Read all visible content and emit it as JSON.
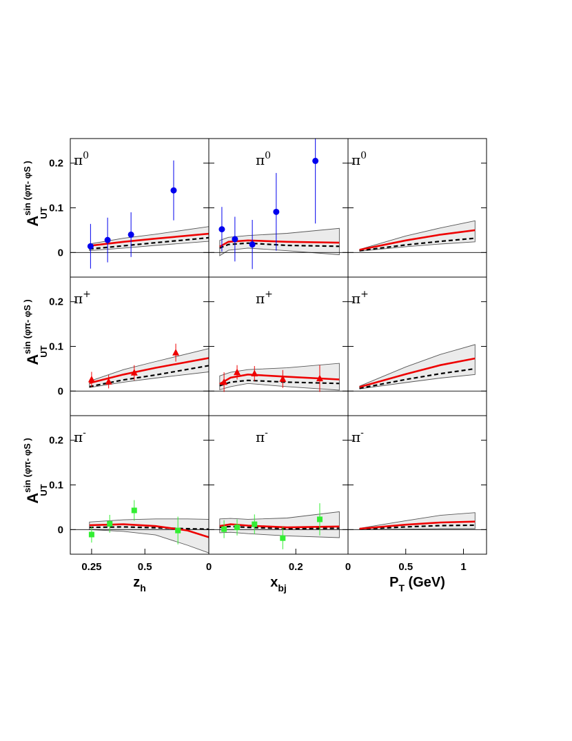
{
  "figure": {
    "x_axis_titles": [
      {
        "main": "z",
        "sub": "h"
      },
      {
        "main": "x",
        "sub": "bj"
      },
      {
        "main": "P",
        "sub": "T",
        "suffix": " (GeV)"
      }
    ],
    "y_axis_label": {
      "main": "A",
      "sup": "sin (φπ- φS )",
      "sub": "UT"
    },
    "y_tick_labels": [
      "0",
      "0.1",
      "0.2"
    ],
    "x_tick_labels": [
      [
        "0.25",
        "0.5"
      ],
      [
        "0",
        "0.2"
      ],
      [
        "0",
        "0.5",
        "1"
      ]
    ],
    "colors": {
      "pi0_points": "#0000ee",
      "piplus_points": "#ee0000",
      "piminus_points": "#33ee33",
      "solid_curve": "#ee0000",
      "dashed_curve": "#000000",
      "band": "#ebebeb"
    }
  },
  "chart_data": [
    {
      "type": "line",
      "row": 0,
      "col": 0,
      "panel_label": {
        "base": "π",
        "sup": "0"
      },
      "xlim": [
        0.15,
        0.8
      ],
      "ylim": [
        -0.055,
        0.255
      ],
      "x_ticks": [
        0.25,
        0.5
      ],
      "y_ticks": [
        0,
        0.1,
        0.2
      ],
      "points": [
        {
          "x": 0.245,
          "y": 0.014,
          "err": 0.05
        },
        {
          "x": 0.325,
          "y": 0.028,
          "err": 0.05
        },
        {
          "x": 0.435,
          "y": 0.04,
          "err": 0.05
        },
        {
          "x": 0.635,
          "y": 0.139,
          "err": 0.067
        }
      ],
      "solid": {
        "x": [
          0.24,
          0.4,
          0.55,
          0.8
        ],
        "y": [
          0.015,
          0.024,
          0.031,
          0.042
        ]
      },
      "dashed": {
        "x": [
          0.24,
          0.4,
          0.55,
          0.8
        ],
        "y": [
          0.008,
          0.015,
          0.022,
          0.033
        ]
      },
      "band_upper": {
        "x": [
          0.24,
          0.4,
          0.55,
          0.8
        ],
        "y": [
          0.019,
          0.032,
          0.041,
          0.058
        ]
      },
      "band_lower": {
        "x": [
          0.24,
          0.4,
          0.55,
          0.8
        ],
        "y": [
          0.004,
          0.01,
          0.016,
          0.025
        ]
      }
    },
    {
      "type": "line",
      "row": 0,
      "col": 1,
      "panel_label": {
        "base": "π",
        "sup": "0"
      },
      "xlim": [
        0.0,
        0.32
      ],
      "ylim": [
        -0.055,
        0.255
      ],
      "x_ticks": [
        0,
        0.2
      ],
      "y_ticks": [
        0,
        0.1,
        0.2
      ],
      "points": [
        {
          "x": 0.03,
          "y": 0.052,
          "err": 0.05
        },
        {
          "x": 0.06,
          "y": 0.03,
          "err": 0.05
        },
        {
          "x": 0.1,
          "y": 0.018,
          "err": 0.055
        },
        {
          "x": 0.155,
          "y": 0.091,
          "err": 0.087
        },
        {
          "x": 0.245,
          "y": 0.205,
          "err": 0.14
        }
      ],
      "solid": {
        "x": [
          0.025,
          0.045,
          0.09,
          0.18,
          0.3
        ],
        "y": [
          0.013,
          0.024,
          0.027,
          0.024,
          0.022
        ]
      },
      "dashed": {
        "x": [
          0.025,
          0.045,
          0.09,
          0.18,
          0.3
        ],
        "y": [
          0.01,
          0.018,
          0.021,
          0.016,
          0.014
        ]
      },
      "band_upper": {
        "x": [
          0.025,
          0.045,
          0.09,
          0.18,
          0.3
        ],
        "y": [
          0.027,
          0.034,
          0.038,
          0.043,
          0.054
        ]
      },
      "band_lower": {
        "x": [
          0.025,
          0.045,
          0.09,
          0.18,
          0.3
        ],
        "y": [
          -0.007,
          0.005,
          0.01,
          0.004,
          -0.005
        ]
      }
    },
    {
      "type": "line",
      "row": 0,
      "col": 2,
      "panel_label": {
        "base": "π",
        "sup": "0"
      },
      "xlim": [
        0.0,
        1.2
      ],
      "ylim": [
        -0.055,
        0.255
      ],
      "x_ticks": [
        0,
        0.5,
        1
      ],
      "y_ticks": [
        0,
        0.1,
        0.2
      ],
      "points": [],
      "solid": {
        "x": [
          0.1,
          0.5,
          0.8,
          1.1
        ],
        "y": [
          0.006,
          0.027,
          0.04,
          0.05
        ]
      },
      "dashed": {
        "x": [
          0.1,
          0.5,
          0.8,
          1.1
        ],
        "y": [
          0.004,
          0.017,
          0.025,
          0.032
        ]
      },
      "band_upper": {
        "x": [
          0.1,
          0.5,
          0.8,
          1.1
        ],
        "y": [
          0.007,
          0.037,
          0.055,
          0.071
        ]
      },
      "band_lower": {
        "x": [
          0.1,
          0.5,
          0.8,
          1.1
        ],
        "y": [
          0.003,
          0.013,
          0.019,
          0.024
        ]
      }
    },
    {
      "type": "line",
      "row": 1,
      "col": 0,
      "panel_label": {
        "base": "π",
        "sup": "+"
      },
      "xlim": [
        0.15,
        0.8
      ],
      "ylim": [
        -0.055,
        0.255
      ],
      "x_ticks": [
        0.25,
        0.5
      ],
      "y_ticks": [
        0,
        0.1,
        0.2
      ],
      "points": [
        {
          "x": 0.25,
          "y": 0.026,
          "err": 0.017
        },
        {
          "x": 0.33,
          "y": 0.021,
          "err": 0.015
        },
        {
          "x": 0.45,
          "y": 0.041,
          "err": 0.017
        },
        {
          "x": 0.645,
          "y": 0.086,
          "err": 0.02
        }
      ],
      "solid": {
        "x": [
          0.24,
          0.4,
          0.55,
          0.8
        ],
        "y": [
          0.018,
          0.037,
          0.052,
          0.074
        ]
      },
      "dashed": {
        "x": [
          0.24,
          0.4,
          0.55,
          0.8
        ],
        "y": [
          0.01,
          0.025,
          0.036,
          0.057
        ]
      },
      "band_upper": {
        "x": [
          0.24,
          0.4,
          0.55,
          0.8
        ],
        "y": [
          0.022,
          0.048,
          0.066,
          0.095
        ]
      },
      "band_lower": {
        "x": [
          0.24,
          0.4,
          0.55,
          0.8
        ],
        "y": [
          0.008,
          0.02,
          0.029,
          0.043
        ]
      }
    },
    {
      "type": "line",
      "row": 1,
      "col": 1,
      "panel_label": {
        "base": "π",
        "sup": "+"
      },
      "xlim": [
        0.0,
        0.32
      ],
      "ylim": [
        -0.055,
        0.255
      ],
      "x_ticks": [
        0,
        0.2
      ],
      "y_ticks": [
        0,
        0.1,
        0.2
      ],
      "points": [
        {
          "x": 0.035,
          "y": 0.02,
          "err": 0.022
        },
        {
          "x": 0.065,
          "y": 0.042,
          "err": 0.016
        },
        {
          "x": 0.105,
          "y": 0.039,
          "err": 0.017
        },
        {
          "x": 0.17,
          "y": 0.027,
          "err": 0.02
        },
        {
          "x": 0.255,
          "y": 0.028,
          "err": 0.03
        }
      ],
      "solid": {
        "x": [
          0.025,
          0.05,
          0.09,
          0.18,
          0.3
        ],
        "y": [
          0.016,
          0.03,
          0.037,
          0.032,
          0.026
        ]
      },
      "dashed": {
        "x": [
          0.025,
          0.05,
          0.09,
          0.18,
          0.3
        ],
        "y": [
          0.012,
          0.02,
          0.024,
          0.02,
          0.017
        ]
      },
      "band_upper": {
        "x": [
          0.025,
          0.05,
          0.09,
          0.18,
          0.3
        ],
        "y": [
          0.034,
          0.042,
          0.048,
          0.052,
          0.062
        ]
      },
      "band_lower": {
        "x": [
          0.025,
          0.05,
          0.09,
          0.18,
          0.3
        ],
        "y": [
          0.003,
          0.01,
          0.017,
          0.01,
          0.002
        ]
      }
    },
    {
      "type": "line",
      "row": 1,
      "col": 2,
      "panel_label": {
        "base": "π",
        "sup": "+"
      },
      "xlim": [
        0.0,
        1.2
      ],
      "ylim": [
        -0.055,
        0.255
      ],
      "x_ticks": [
        0,
        0.5,
        1
      ],
      "y_ticks": [
        0,
        0.1,
        0.2
      ],
      "points": [],
      "solid": {
        "x": [
          0.1,
          0.5,
          0.8,
          1.1
        ],
        "y": [
          0.009,
          0.038,
          0.058,
          0.073
        ]
      },
      "dashed": {
        "x": [
          0.1,
          0.5,
          0.8,
          1.1
        ],
        "y": [
          0.006,
          0.026,
          0.039,
          0.05
        ]
      },
      "band_upper": {
        "x": [
          0.1,
          0.5,
          0.8,
          1.1
        ],
        "y": [
          0.011,
          0.054,
          0.082,
          0.104
        ]
      },
      "band_lower": {
        "x": [
          0.1,
          0.5,
          0.8,
          1.1
        ],
        "y": [
          0.005,
          0.019,
          0.029,
          0.037
        ]
      }
    },
    {
      "type": "line",
      "row": 2,
      "col": 0,
      "panel_label": {
        "base": "π",
        "sup": "-"
      },
      "xlim": [
        0.15,
        0.8
      ],
      "ylim": [
        -0.055,
        0.255
      ],
      "x_ticks": [
        0.25,
        0.5
      ],
      "y_ticks": [
        0,
        0.1,
        0.2
      ],
      "points": [
        {
          "x": 0.25,
          "y": -0.011,
          "err": 0.018
        },
        {
          "x": 0.335,
          "y": 0.013,
          "err": 0.02
        },
        {
          "x": 0.45,
          "y": 0.043,
          "err": 0.023
        },
        {
          "x": 0.655,
          "y": -0.002,
          "err": 0.031
        }
      ],
      "solid": {
        "x": [
          0.24,
          0.4,
          0.55,
          0.7,
          0.8
        ],
        "y": [
          0.01,
          0.012,
          0.008,
          -0.002,
          -0.017
        ]
      },
      "dashed": {
        "x": [
          0.24,
          0.4,
          0.55,
          0.7,
          0.8
        ],
        "y": [
          0.005,
          0.006,
          0.004,
          0.002,
          0.001
        ]
      },
      "band_upper": {
        "x": [
          0.24,
          0.4,
          0.55,
          0.7,
          0.8
        ],
        "y": [
          0.017,
          0.022,
          0.024,
          0.024,
          0.023
        ]
      },
      "band_lower": {
        "x": [
          0.24,
          0.4,
          0.55,
          0.7,
          0.8
        ],
        "y": [
          0.0,
          -0.004,
          -0.012,
          -0.035,
          -0.052
        ]
      }
    },
    {
      "type": "line",
      "row": 2,
      "col": 1,
      "panel_label": {
        "base": "π",
        "sup": "-"
      },
      "xlim": [
        0.0,
        0.32
      ],
      "ylim": [
        -0.055,
        0.255
      ],
      "x_ticks": [
        0,
        0.2
      ],
      "y_ticks": [
        0,
        0.1,
        0.2
      ],
      "points": [
        {
          "x": 0.035,
          "y": 0.001,
          "err": 0.02
        },
        {
          "x": 0.065,
          "y": 0.005,
          "err": 0.018
        },
        {
          "x": 0.105,
          "y": 0.012,
          "err": 0.022
        },
        {
          "x": 0.17,
          "y": -0.019,
          "err": 0.025
        },
        {
          "x": 0.255,
          "y": 0.023,
          "err": 0.036
        }
      ],
      "solid": {
        "x": [
          0.025,
          0.05,
          0.09,
          0.18,
          0.3
        ],
        "y": [
          0.008,
          0.012,
          0.009,
          0.005,
          0.007
        ]
      },
      "dashed": {
        "x": [
          0.025,
          0.05,
          0.09,
          0.18,
          0.3
        ],
        "y": [
          0.005,
          0.007,
          0.005,
          0.002,
          0.003
        ]
      },
      "band_upper": {
        "x": [
          0.025,
          0.05,
          0.09,
          0.18,
          0.3
        ],
        "y": [
          0.024,
          0.025,
          0.023,
          0.026,
          0.04
        ]
      },
      "band_lower": {
        "x": [
          0.025,
          0.05,
          0.09,
          0.18,
          0.3
        ],
        "y": [
          -0.007,
          -0.006,
          -0.009,
          -0.014,
          -0.018
        ]
      }
    },
    {
      "type": "line",
      "row": 2,
      "col": 2,
      "panel_label": {
        "base": "π",
        "sup": "-"
      },
      "xlim": [
        0.0,
        1.2
      ],
      "ylim": [
        -0.055,
        0.255
      ],
      "x_ticks": [
        0,
        0.5,
        1
      ],
      "y_ticks": [
        0,
        0.1,
        0.2
      ],
      "points": [],
      "solid": {
        "x": [
          0.1,
          0.5,
          0.8,
          1.1
        ],
        "y": [
          0.002,
          0.011,
          0.016,
          0.018
        ]
      },
      "dashed": {
        "x": [
          0.1,
          0.5,
          0.8,
          1.1
        ],
        "y": [
          0.001,
          0.006,
          0.009,
          0.01
        ]
      },
      "band_upper": {
        "x": [
          0.1,
          0.5,
          0.8,
          1.1
        ],
        "y": [
          0.003,
          0.02,
          0.032,
          0.038
        ]
      },
      "band_lower": {
        "x": [
          0.1,
          0.5,
          0.8,
          1.1
        ],
        "y": [
          0.0,
          0.001,
          0.002,
          0.002
        ]
      }
    }
  ]
}
